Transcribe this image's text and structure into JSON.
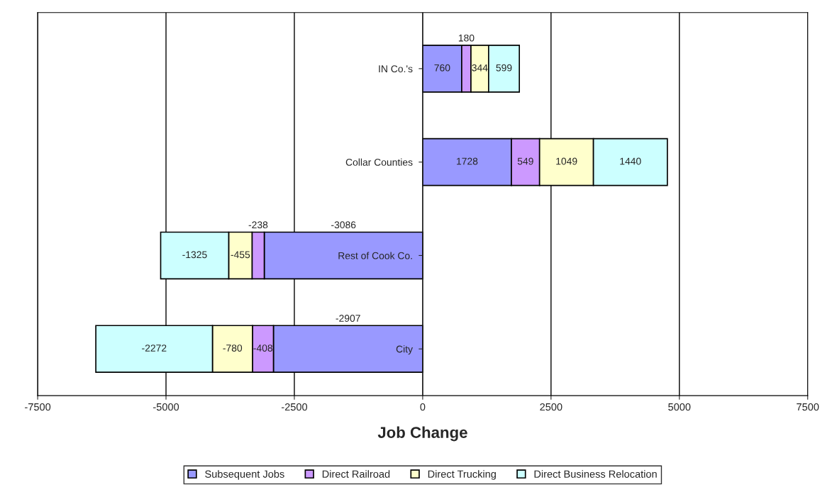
{
  "chart_data": {
    "type": "bar",
    "orientation": "horizontal",
    "stacked": true,
    "xlabel": "Job Change",
    "categories": [
      "IN Co.'s",
      "Collar Counties",
      "Rest of Cook Co.",
      "City"
    ],
    "series": [
      {
        "name": "Subsequent Jobs",
        "color": "#9999ff",
        "values": [
          760,
          1728,
          -3086,
          -2907
        ]
      },
      {
        "name": "Direct Railroad",
        "color": "#cc99ff",
        "values": [
          180,
          549,
          -238,
          -408
        ]
      },
      {
        "name": "Direct Trucking",
        "color": "#ffffcc",
        "values": [
          344,
          1049,
          -455,
          -780
        ]
      },
      {
        "name": "Direct Business Relocation",
        "color": "#ccffff",
        "values": [
          599,
          1440,
          -1325,
          -2272
        ]
      }
    ],
    "xlim": [
      -7500,
      7500
    ],
    "xticks": [
      -7500,
      -5000,
      -2500,
      0,
      2500,
      5000,
      7500
    ],
    "grid": "x",
    "legend": "bottom",
    "data_labels": true
  }
}
